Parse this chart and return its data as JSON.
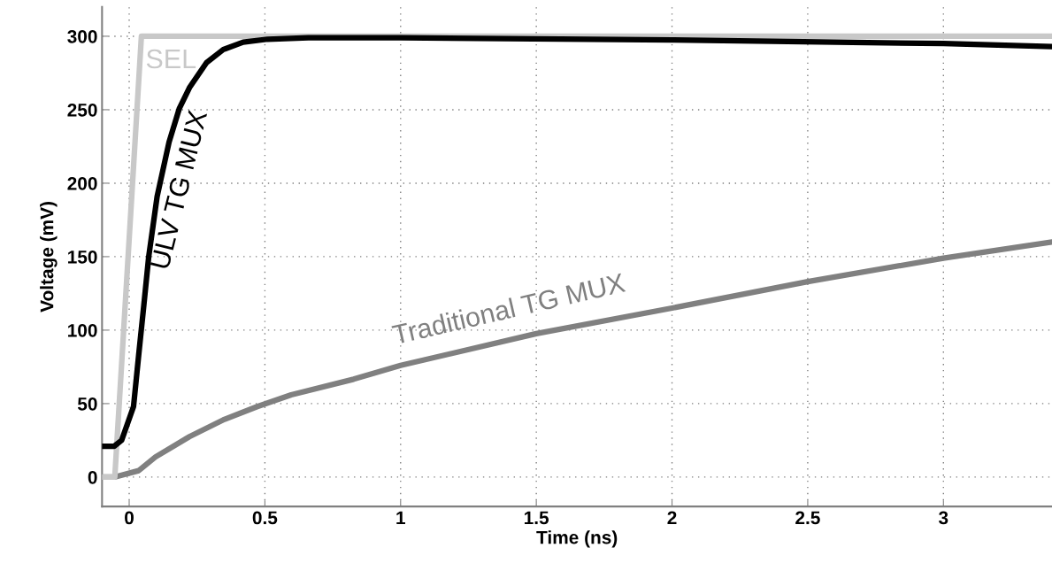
{
  "chart_data": {
    "type": "line",
    "xlabel": "Time (ns)",
    "ylabel": "Voltage (mV)",
    "xlim": [
      -0.1,
      3.4
    ],
    "ylim": [
      -20,
      320
    ],
    "xticks": [
      0,
      0.5,
      1,
      1.5,
      2,
      2.5,
      3
    ],
    "yticks": [
      0,
      50,
      100,
      150,
      200,
      250,
      300
    ],
    "grid": true,
    "legend": false,
    "marker": "none",
    "line_style": "solid",
    "series": [
      {
        "name": "SEL",
        "color": "#c8c8c8",
        "x": [
          -0.1,
          -0.053,
          0.045,
          0.5,
          1,
          2,
          3,
          3.4
        ],
        "values": [
          0,
          0,
          300,
          300,
          300,
          300,
          300,
          300
        ]
      },
      {
        "name": "ULV TG MUX",
        "color": "#000000",
        "x": [
          -0.1,
          -0.055,
          -0.028,
          0.016,
          0.035,
          0.054,
          0.072,
          0.103,
          0.147,
          0.185,
          0.222,
          0.285,
          0.347,
          0.42,
          0.51,
          0.66,
          1,
          2,
          3,
          3.4
        ],
        "values": [
          21,
          21,
          25,
          48,
          83,
          117,
          150,
          191,
          228,
          251,
          265,
          282,
          291,
          296,
          298,
          299,
          299,
          297.5,
          295,
          293
        ]
      },
      {
        "name": "Traditional TG MUX",
        "color": "#808080",
        "x": [
          -0.1,
          -0.055,
          0.035,
          0.097,
          0.222,
          0.347,
          0.472,
          0.597,
          0.827,
          1,
          1.5,
          2,
          2.5,
          3,
          3.4
        ],
        "values": [
          0,
          0,
          4.4,
          13.7,
          27.5,
          39,
          48,
          56,
          66.6,
          76,
          97.6,
          115,
          133,
          149,
          160
        ]
      }
    ]
  }
}
